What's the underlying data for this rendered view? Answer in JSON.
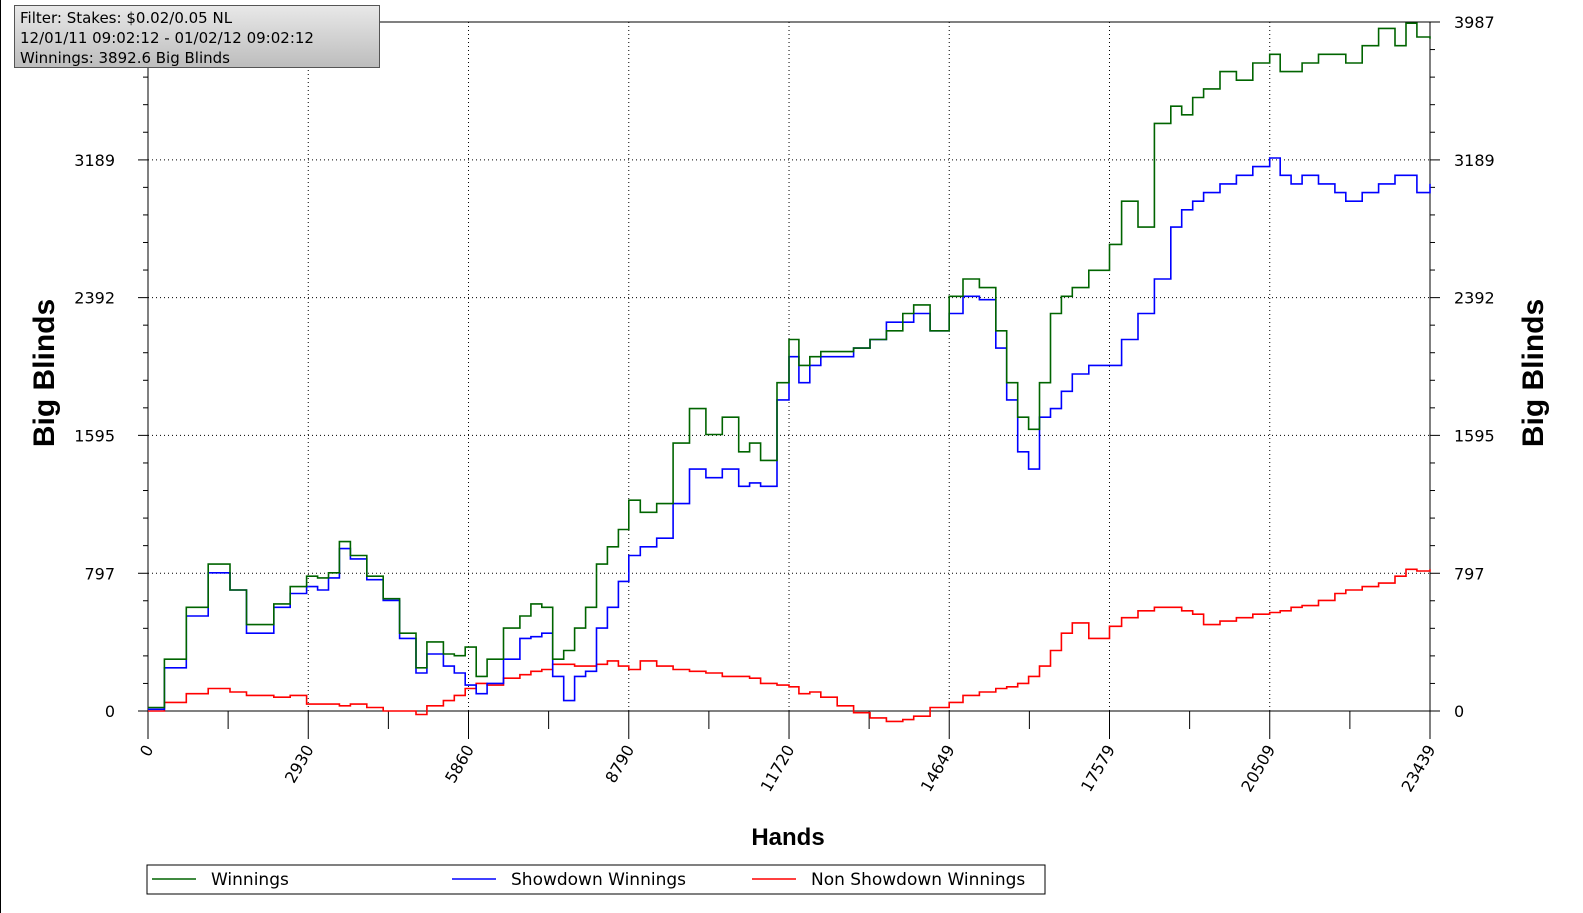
{
  "filter_box": {
    "line1": "Filter: Stakes: $0.02/0.05 NL",
    "line2": "12/01/11 09:02:12 - 01/02/12 09:02:12",
    "line3": "Winnings: 3892.6 Big Blinds"
  },
  "chart_data": {
    "type": "line",
    "xlabel": "Hands",
    "ylabel_left": "Big Blinds",
    "ylabel_right": "Big Blinds",
    "xlim": [
      0,
      23439
    ],
    "ylim": [
      0,
      3987
    ],
    "x_ticks": [
      "0",
      "2930",
      "5860",
      "8790",
      "11720",
      "14649",
      "17579",
      "20509",
      "23439"
    ],
    "y_ticks": [
      "0",
      "797",
      "1595",
      "2392",
      "3189",
      "3987"
    ],
    "y_ticks_right": [
      "0",
      "797",
      "1595",
      "2392",
      "3189",
      "3987"
    ],
    "grid": true,
    "legend_position": "bottom",
    "colors": {
      "winnings": "#006400",
      "showdown": "#0000ff",
      "non_showdown": "#ff0000"
    },
    "series": [
      {
        "name": "Winnings",
        "x": [
          0,
          300,
          700,
          1100,
          1500,
          1800,
          2000,
          2300,
          2600,
          2900,
          3100,
          3300,
          3500,
          3700,
          4000,
          4300,
          4600,
          4900,
          5100,
          5400,
          5600,
          5800,
          6000,
          6200,
          6500,
          6800,
          7000,
          7200,
          7400,
          7600,
          7800,
          8000,
          8200,
          8400,
          8600,
          8790,
          9000,
          9300,
          9600,
          9900,
          10200,
          10500,
          10800,
          11000,
          11200,
          11500,
          11720,
          11900,
          12100,
          12300,
          12600,
          12900,
          13200,
          13500,
          13800,
          14000,
          14300,
          14649,
          14900,
          15200,
          15500,
          15700,
          15900,
          16100,
          16300,
          16500,
          16700,
          16900,
          17200,
          17579,
          17800,
          18100,
          18400,
          18700,
          18900,
          19100,
          19300,
          19600,
          19900,
          20200,
          20509,
          20700,
          20900,
          21100,
          21400,
          21700,
          21900,
          22200,
          22500,
          22800,
          23000,
          23200,
          23439
        ],
        "values": [
          20,
          300,
          600,
          850,
          700,
          500,
          500,
          620,
          720,
          780,
          770,
          800,
          980,
          900,
          780,
          650,
          450,
          250,
          400,
          330,
          320,
          370,
          200,
          300,
          480,
          550,
          620,
          600,
          300,
          350,
          480,
          600,
          850,
          950,
          1050,
          1220,
          1150,
          1200,
          1550,
          1750,
          1600,
          1700,
          1500,
          1550,
          1450,
          1900,
          2150,
          2000,
          2050,
          2080,
          2080,
          2100,
          2150,
          2200,
          2300,
          2350,
          2200,
          2400,
          2500,
          2450,
          2200,
          1900,
          1700,
          1630,
          1900,
          2300,
          2400,
          2450,
          2550,
          2700,
          2950,
          2800,
          3400,
          3500,
          3450,
          3550,
          3600,
          3700,
          3650,
          3750,
          3800,
          3700,
          3700,
          3750,
          3800,
          3800,
          3750,
          3850,
          3950,
          3850,
          3980,
          3900,
          3890
        ]
      },
      {
        "name": "Showdown Winnings",
        "x": [
          0,
          300,
          700,
          1100,
          1500,
          1800,
          2000,
          2300,
          2600,
          2900,
          3100,
          3300,
          3500,
          3700,
          4000,
          4300,
          4600,
          4900,
          5100,
          5400,
          5600,
          5800,
          6000,
          6200,
          6500,
          6800,
          7000,
          7200,
          7400,
          7600,
          7800,
          8000,
          8200,
          8400,
          8600,
          8790,
          9000,
          9300,
          9600,
          9900,
          10200,
          10500,
          10800,
          11000,
          11200,
          11500,
          11720,
          11900,
          12100,
          12300,
          12600,
          12900,
          13200,
          13500,
          13800,
          14000,
          14300,
          14649,
          14900,
          15200,
          15500,
          15700,
          15900,
          16100,
          16300,
          16500,
          16700,
          16900,
          17200,
          17579,
          17800,
          18100,
          18400,
          18700,
          18900,
          19100,
          19300,
          19600,
          19900,
          20200,
          20509,
          20700,
          20900,
          21100,
          21400,
          21700,
          21900,
          22200,
          22500,
          22800,
          23000,
          23200,
          23439
        ],
        "values": [
          10,
          250,
          550,
          800,
          700,
          450,
          450,
          600,
          680,
          720,
          700,
          770,
          940,
          880,
          760,
          640,
          420,
          220,
          330,
          260,
          220,
          150,
          100,
          160,
          300,
          420,
          430,
          450,
          200,
          60,
          200,
          230,
          480,
          600,
          750,
          900,
          950,
          1000,
          1200,
          1400,
          1350,
          1400,
          1300,
          1320,
          1300,
          1800,
          2050,
          1900,
          2000,
          2050,
          2050,
          2100,
          2150,
          2250,
          2250,
          2300,
          2200,
          2300,
          2400,
          2380,
          2100,
          1800,
          1500,
          1400,
          1700,
          1750,
          1850,
          1950,
          2000,
          2000,
          2150,
          2300,
          2500,
          2800,
          2900,
          2950,
          3000,
          3050,
          3100,
          3150,
          3200,
          3100,
          3050,
          3100,
          3050,
          3000,
          2950,
          3000,
          3050,
          3100,
          3100,
          3000,
          3050
        ]
      },
      {
        "name": "Non Showdown Winnings",
        "x": [
          0,
          300,
          700,
          1100,
          1500,
          1800,
          2000,
          2300,
          2600,
          2900,
          3100,
          3300,
          3500,
          3700,
          4000,
          4300,
          4600,
          4900,
          5100,
          5400,
          5600,
          5800,
          6000,
          6200,
          6500,
          6800,
          7000,
          7200,
          7400,
          7600,
          7800,
          8000,
          8200,
          8400,
          8600,
          8790,
          9000,
          9300,
          9600,
          9900,
          10200,
          10500,
          10800,
          11000,
          11200,
          11500,
          11720,
          11900,
          12100,
          12300,
          12600,
          12900,
          13200,
          13500,
          13800,
          14000,
          14300,
          14649,
          14900,
          15200,
          15500,
          15700,
          15900,
          16100,
          16300,
          16500,
          16700,
          16900,
          17200,
          17579,
          17800,
          18100,
          18400,
          18700,
          18900,
          19100,
          19300,
          19600,
          19900,
          20200,
          20509,
          20700,
          20900,
          21100,
          21400,
          21700,
          21900,
          22200,
          22500,
          22800,
          23000,
          23200,
          23439
        ],
        "values": [
          0,
          50,
          100,
          130,
          110,
          90,
          90,
          80,
          90,
          40,
          40,
          40,
          30,
          40,
          20,
          0,
          0,
          -20,
          30,
          60,
          90,
          130,
          160,
          150,
          190,
          210,
          230,
          240,
          270,
          270,
          260,
          260,
          270,
          290,
          260,
          240,
          290,
          260,
          240,
          230,
          220,
          200,
          200,
          190,
          160,
          150,
          140,
          100,
          110,
          80,
          30,
          -10,
          -40,
          -60,
          -50,
          -30,
          20,
          50,
          90,
          110,
          130,
          140,
          160,
          200,
          260,
          350,
          450,
          510,
          420,
          490,
          540,
          580,
          600,
          600,
          580,
          560,
          500,
          520,
          540,
          560,
          570,
          580,
          600,
          610,
          640,
          680,
          700,
          720,
          740,
          780,
          820,
          810,
          820
        ]
      }
    ]
  }
}
